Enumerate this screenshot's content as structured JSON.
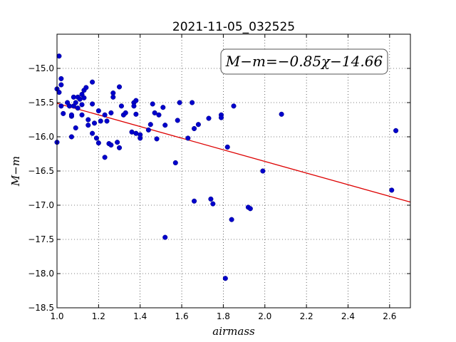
{
  "chart_data": {
    "type": "scatter",
    "title": "2021-11-05_032525",
    "xlabel": "airmass",
    "ylabel": "M−m",
    "xlim": [
      1.0,
      2.7
    ],
    "ylim": [
      -18.5,
      -14.5
    ],
    "y_inverted": true,
    "grid": true,
    "x_ticks": [
      1.0,
      1.2,
      1.4,
      1.6,
      1.8,
      2.0,
      2.2,
      2.4,
      2.6
    ],
    "x_tick_labels": [
      "1.0",
      "1.2",
      "1.4",
      "1.6",
      "1.8",
      "2.0",
      "2.2",
      "2.4",
      "2.6"
    ],
    "y_ticks": [
      -15.0,
      -15.5,
      -16.0,
      -16.5,
      -17.0,
      -17.5,
      -18.0,
      -18.5
    ],
    "y_tick_labels": [
      "−15.0",
      "−15.5",
      "−16.0",
      "−16.5",
      "−17.0",
      "−17.5",
      "−18.0",
      "−18.5"
    ],
    "annotation": "M−m=−0.85χ−14.66",
    "point_color": "#0000cc",
    "fit_color": "#dd0000",
    "fit_line": {
      "slope": -0.85,
      "intercept": -14.66
    },
    "points": [
      {
        "x": 1.0,
        "y": -15.3
      },
      {
        "x": 1.0,
        "y": -16.08
      },
      {
        "x": 1.01,
        "y": -15.35
      },
      {
        "x": 1.01,
        "y": -14.82
      },
      {
        "x": 1.02,
        "y": -15.55
      },
      {
        "x": 1.02,
        "y": -15.24
      },
      {
        "x": 1.02,
        "y": -15.15
      },
      {
        "x": 1.03,
        "y": -15.66
      },
      {
        "x": 1.05,
        "y": -15.5
      },
      {
        "x": 1.06,
        "y": -15.55
      },
      {
        "x": 1.07,
        "y": -16.0
      },
      {
        "x": 1.07,
        "y": -15.7
      },
      {
        "x": 1.07,
        "y": -15.68
      },
      {
        "x": 1.08,
        "y": -15.42
      },
      {
        "x": 1.08,
        "y": -15.55
      },
      {
        "x": 1.09,
        "y": -15.87
      },
      {
        "x": 1.09,
        "y": -15.5
      },
      {
        "x": 1.1,
        "y": -15.42
      },
      {
        "x": 1.1,
        "y": -15.58
      },
      {
        "x": 1.11,
        "y": -15.45
      },
      {
        "x": 1.12,
        "y": -15.68
      },
      {
        "x": 1.12,
        "y": -15.53
      },
      {
        "x": 1.12,
        "y": -15.38
      },
      {
        "x": 1.13,
        "y": -15.32
      },
      {
        "x": 1.13,
        "y": -15.43
      },
      {
        "x": 1.14,
        "y": -15.28
      },
      {
        "x": 1.15,
        "y": -15.75
      },
      {
        "x": 1.15,
        "y": -15.83
      },
      {
        "x": 1.17,
        "y": -15.95
      },
      {
        "x": 1.17,
        "y": -15.52
      },
      {
        "x": 1.17,
        "y": -15.2
      },
      {
        "x": 1.18,
        "y": -15.8
      },
      {
        "x": 1.19,
        "y": -16.02
      },
      {
        "x": 1.2,
        "y": -16.09
      },
      {
        "x": 1.2,
        "y": -15.62
      },
      {
        "x": 1.21,
        "y": -15.77
      },
      {
        "x": 1.23,
        "y": -16.3
      },
      {
        "x": 1.23,
        "y": -15.68
      },
      {
        "x": 1.24,
        "y": -15.77
      },
      {
        "x": 1.25,
        "y": -16.1
      },
      {
        "x": 1.26,
        "y": -16.12
      },
      {
        "x": 1.26,
        "y": -15.65
      },
      {
        "x": 1.27,
        "y": -15.36
      },
      {
        "x": 1.27,
        "y": -15.42
      },
      {
        "x": 1.29,
        "y": -16.08
      },
      {
        "x": 1.3,
        "y": -16.16
      },
      {
        "x": 1.3,
        "y": -15.27
      },
      {
        "x": 1.31,
        "y": -15.55
      },
      {
        "x": 1.32,
        "y": -15.68
      },
      {
        "x": 1.33,
        "y": -15.65
      },
      {
        "x": 1.36,
        "y": -15.93
      },
      {
        "x": 1.37,
        "y": -15.5
      },
      {
        "x": 1.37,
        "y": -15.55
      },
      {
        "x": 1.38,
        "y": -15.67
      },
      {
        "x": 1.38,
        "y": -15.47
      },
      {
        "x": 1.38,
        "y": -15.95
      },
      {
        "x": 1.4,
        "y": -16.02
      },
      {
        "x": 1.4,
        "y": -15.97
      },
      {
        "x": 1.44,
        "y": -15.9
      },
      {
        "x": 1.45,
        "y": -15.82
      },
      {
        "x": 1.46,
        "y": -15.52
      },
      {
        "x": 1.47,
        "y": -15.65
      },
      {
        "x": 1.48,
        "y": -16.03
      },
      {
        "x": 1.49,
        "y": -15.68
      },
      {
        "x": 1.51,
        "y": -15.57
      },
      {
        "x": 1.52,
        "y": -15.83
      },
      {
        "x": 1.52,
        "y": -17.47
      },
      {
        "x": 1.57,
        "y": -16.38
      },
      {
        "x": 1.58,
        "y": -15.76
      },
      {
        "x": 1.59,
        "y": -15.5
      },
      {
        "x": 1.63,
        "y": -16.02
      },
      {
        "x": 1.65,
        "y": -15.5
      },
      {
        "x": 1.66,
        "y": -15.88
      },
      {
        "x": 1.66,
        "y": -16.94
      },
      {
        "x": 1.68,
        "y": -15.82
      },
      {
        "x": 1.73,
        "y": -15.73
      },
      {
        "x": 1.74,
        "y": -16.91
      },
      {
        "x": 1.75,
        "y": -16.98
      },
      {
        "x": 1.79,
        "y": -15.68
      },
      {
        "x": 1.79,
        "y": -15.72
      },
      {
        "x": 1.81,
        "y": -18.07
      },
      {
        "x": 1.82,
        "y": -16.15
      },
      {
        "x": 1.84,
        "y": -17.21
      },
      {
        "x": 1.85,
        "y": -15.55
      },
      {
        "x": 1.92,
        "y": -17.03
      },
      {
        "x": 1.93,
        "y": -17.05
      },
      {
        "x": 1.99,
        "y": -16.5
      },
      {
        "x": 2.08,
        "y": -15.67
      },
      {
        "x": 2.61,
        "y": -16.78
      },
      {
        "x": 2.63,
        "y": -15.91
      }
    ]
  }
}
